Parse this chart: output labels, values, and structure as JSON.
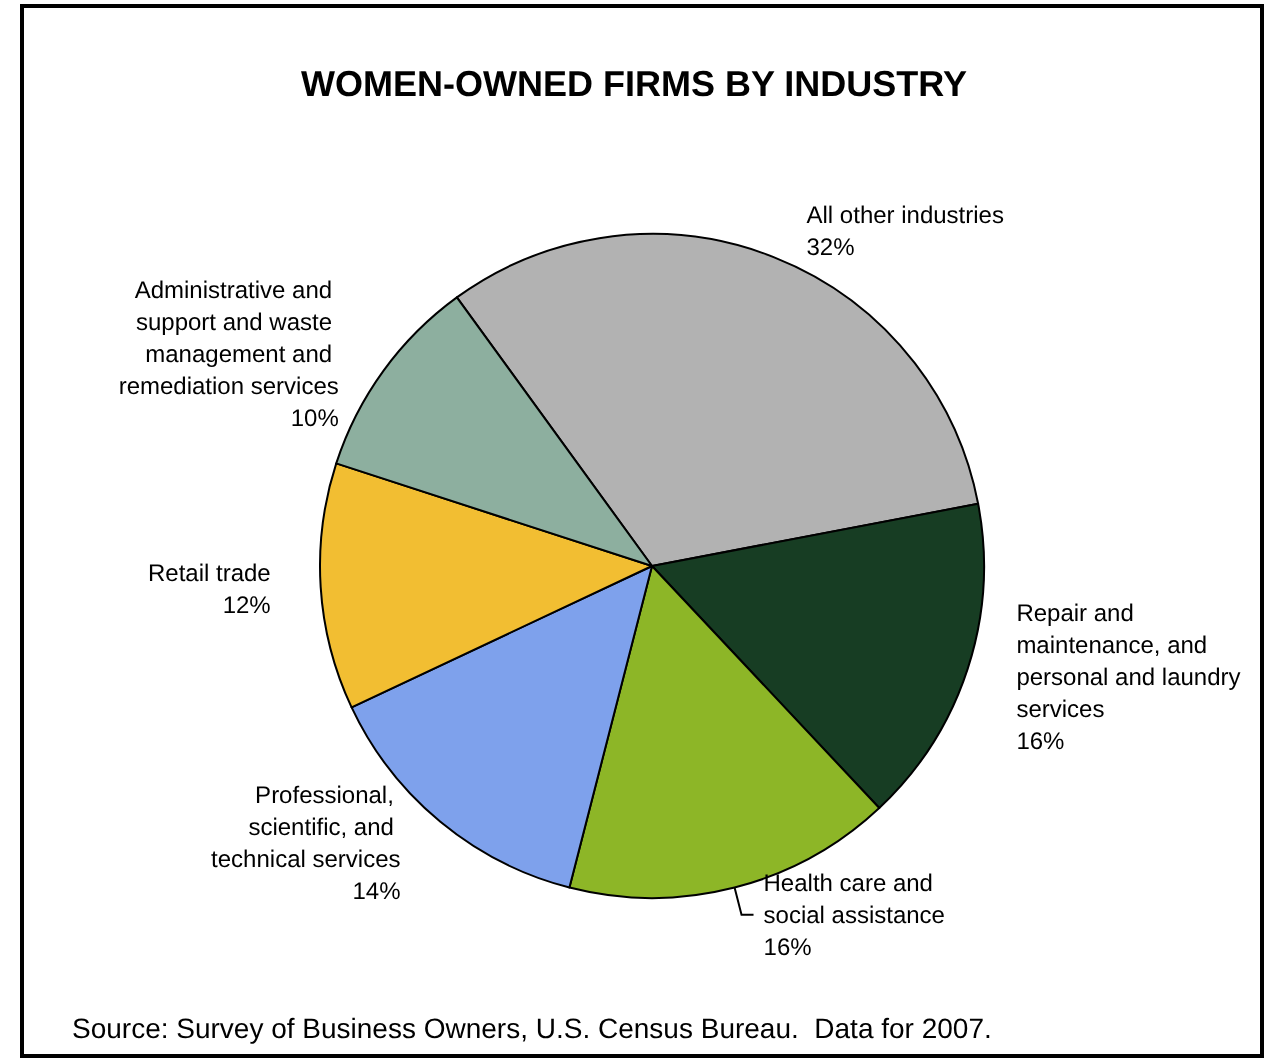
{
  "chart_data": {
    "type": "pie",
    "title": "WOMEN-OWNED FIRMS BY INDUSTRY",
    "categories": [
      "All other industries",
      "Repair and maintenance, and personal and laundry services",
      "Health care and social assistance",
      "Professional, scientific, and technical services",
      "Retail trade",
      "Administrative and support and waste management and remediation services"
    ],
    "values": [
      32,
      16,
      16,
      14,
      12,
      10
    ],
    "colors": [
      "#b2b2b2",
      "#173d23",
      "#8db627",
      "#7ea1ec",
      "#f2be32",
      "#8daf9f"
    ],
    "value_labels": [
      "32%",
      "16%",
      "16%",
      "14%",
      "12%",
      "10%"
    ],
    "annotations": [
      "Source: Survey of Business Owners, U.S. Census Bureau.  Data for 2007."
    ]
  }
}
